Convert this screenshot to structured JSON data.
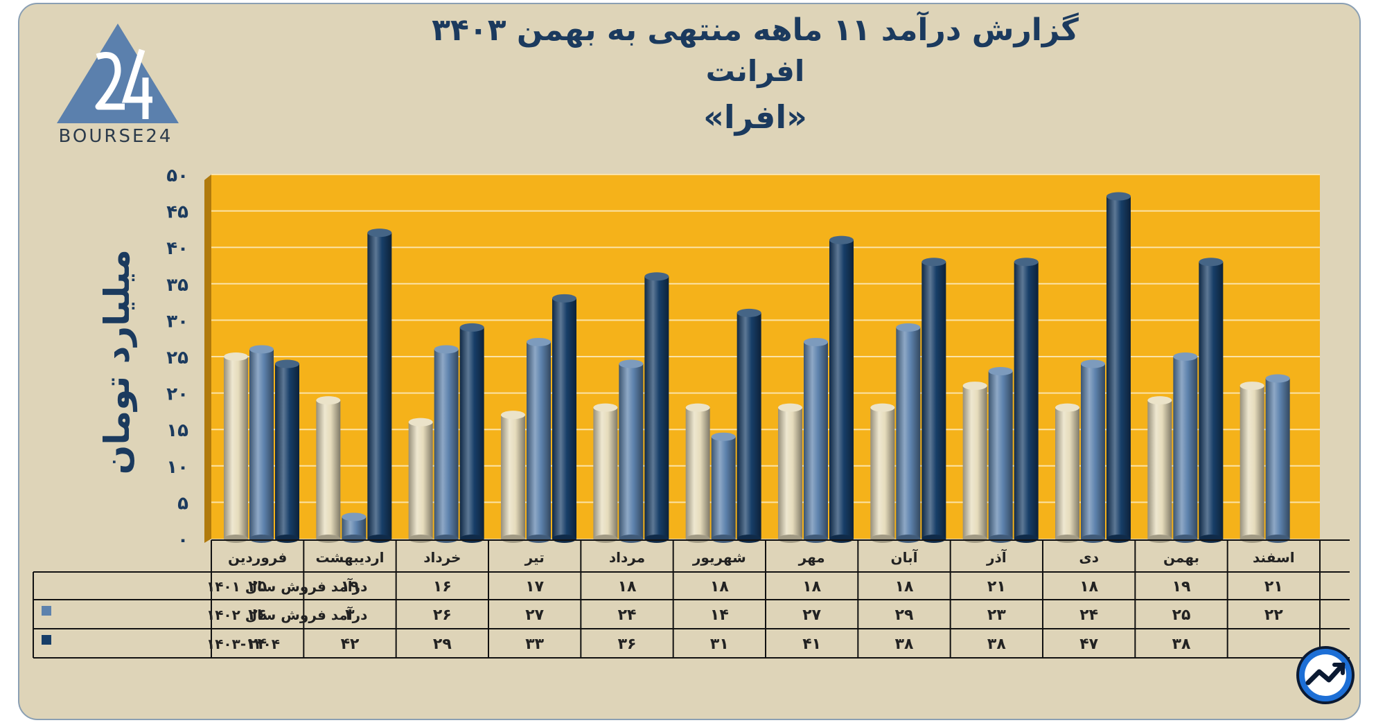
{
  "header": {
    "title_line1": "گزارش  درآمد ۱۱ ماهه منتهی به بهمن ۳۴۰۳",
    "title_line2": "افرانت",
    "title_line3": "«افرا»"
  },
  "logo": {
    "text": "BOURSE24",
    "mark": "24"
  },
  "colors": {
    "card_bg": "#ded4b8",
    "plot_bg": "#f5b21a",
    "series_1401": "#e6dcbc",
    "series_1402": "#5d82ad",
    "series_1403": "#173e68",
    "text": "#1b3a5e"
  },
  "chart_data": {
    "type": "bar",
    "title": "گزارش  درآمد ۱۱ ماهه منتهی به بهمن ۳۴۰۳",
    "subtitle": "افرانت «افرا»",
    "ylabel": "میلیارد تومان",
    "xlabel": "",
    "ylim": [
      0,
      50
    ],
    "yticks": [
      0,
      5,
      10,
      15,
      20,
      25,
      30,
      35,
      40,
      45,
      50
    ],
    "ytick_labels": [
      "۰",
      "۵",
      "۱۰",
      "۱۵",
      "۲۰",
      "۲۵",
      "۳۰",
      "۳۵",
      "۴۰",
      "۴۵",
      "۵۰"
    ],
    "grid": true,
    "categories": [
      "فروردین",
      "اردیبهشت",
      "خرداد",
      "تیر",
      "مرداد",
      "شهریور",
      "مهر",
      "آبان",
      "آذر",
      "دی",
      "بهمن",
      "اسفند"
    ],
    "series": [
      {
        "name": "درآمد فروش سال ۱۴۰۱",
        "values": [
          25,
          19,
          16,
          17,
          18,
          18,
          18,
          18,
          21,
          18,
          19,
          21
        ],
        "labels": [
          "۲۵",
          "۱۹",
          "۱۶",
          "۱۷",
          "۱۸",
          "۱۸",
          "۱۸",
          "۱۸",
          "۲۱",
          "۱۸",
          "۱۹",
          "۲۱"
        ]
      },
      {
        "name": "درآمد فروش سال ۱۴۰۲",
        "values": [
          26,
          3,
          26,
          27,
          24,
          14,
          27,
          29,
          23,
          24,
          25,
          22
        ],
        "labels": [
          "۲۶",
          "۳",
          "۲۶",
          "۲۷",
          "۲۴",
          "۱۴",
          "۲۷",
          "۲۹",
          "۲۳",
          "۲۴",
          "۲۵",
          "۲۲"
        ]
      },
      {
        "name": "۱۴۰۳-۱۴۰۴",
        "values": [
          24,
          42,
          29,
          33,
          36,
          31,
          41,
          38,
          38,
          47,
          38,
          null
        ],
        "labels": [
          "۲۴",
          "۴۲",
          "۲۹",
          "۳۳",
          "۳۶",
          "۳۱",
          "۴۱",
          "۳۸",
          "۳۸",
          "۴۷",
          "۳۸",
          ""
        ]
      }
    ]
  }
}
